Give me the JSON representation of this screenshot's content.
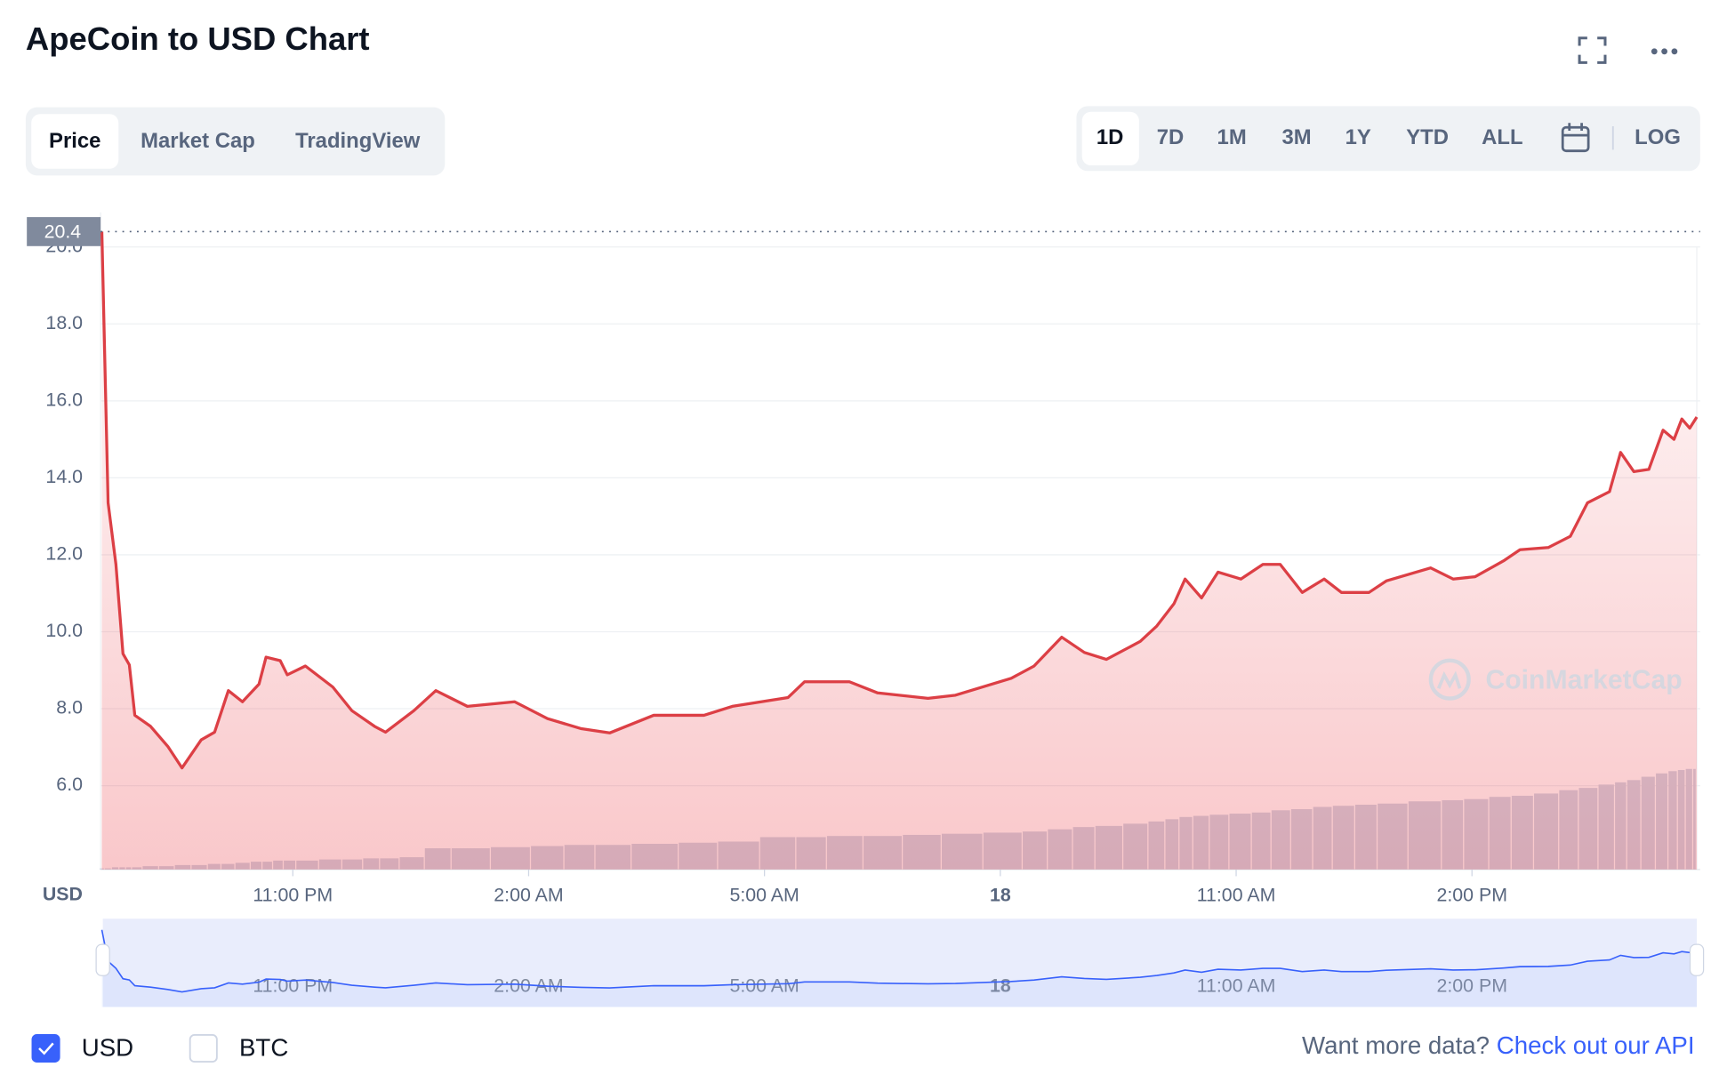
{
  "header": {
    "title": "ApeCoin to USD Chart"
  },
  "tabs": [
    "Price",
    "Market Cap",
    "TradingView"
  ],
  "active_tab": 0,
  "ranges": [
    "1D",
    "7D",
    "1M",
    "3M",
    "1Y",
    "YTD",
    "ALL"
  ],
  "active_range": 0,
  "log_button": "LOG",
  "chart_data": {
    "type": "line",
    "y_axis_label": "USD",
    "watermark": "CoinMarketCap",
    "grid": true,
    "x": [
      20.57,
      20.65,
      20.75,
      20.84,
      20.92,
      20.99,
      21.19,
      21.41,
      21.59,
      21.835,
      22.005,
      22.18,
      22.36,
      22.57,
      22.66,
      22.84,
      22.93,
      23.16,
      23.51,
      23.75,
      24.04,
      24.18,
      24.54,
      24.82,
      25.22,
      25.82,
      26.24,
      26.67,
      27.03,
      27.59,
      28.23,
      28.59,
      29.3,
      29.51,
      30.08,
      30.44,
      31.08,
      31.43,
      32.14,
      32.43,
      32.78,
      33.07,
      33.35,
      33.78,
      33.99,
      34.21,
      34.35,
      34.56,
      34.77,
      35.06,
      35.34,
      35.56,
      35.84,
      36.12,
      36.34,
      36.69,
      36.91,
      37.475,
      37.76,
      38.04,
      38.4,
      38.61,
      38.97,
      39.25,
      39.47,
      39.75,
      39.89,
      40.06,
      40.25,
      40.43,
      40.57,
      40.67,
      40.77,
      40.86
    ],
    "series": [
      {
        "color": "#dc3f45",
        "values": [
          20.4,
          13.35,
          11.75,
          9.43,
          9.14,
          7.83,
          7.54,
          7.02,
          6.46,
          7.19,
          7.39,
          8.47,
          8.18,
          8.64,
          9.34,
          9.25,
          8.88,
          9.11,
          8.56,
          7.95,
          7.54,
          7.39,
          7.95,
          8.47,
          8.06,
          8.18,
          7.74,
          7.48,
          7.37,
          7.83,
          7.83,
          8.06,
          8.29,
          8.7,
          8.7,
          8.41,
          8.27,
          8.35,
          8.79,
          9.11,
          9.86,
          9.46,
          9.28,
          9.75,
          10.15,
          10.73,
          11.37,
          10.88,
          11.55,
          11.37,
          11.75,
          11.75,
          11.02,
          11.37,
          11.02,
          11.02,
          11.32,
          11.66,
          11.37,
          11.43,
          11.84,
          12.13,
          12.19,
          12.48,
          13.35,
          13.64,
          14.66,
          14.16,
          14.22,
          15.24,
          15.0,
          15.53,
          15.29,
          15.58
        ]
      },
      {
        "type": "bar",
        "axis": "y2",
        "color": "#cfd6e4",
        "values": [
          1,
          1,
          2,
          2,
          2,
          2,
          3,
          3,
          4,
          4,
          5,
          5,
          6,
          7,
          7,
          8,
          8,
          8,
          9,
          9,
          10,
          10,
          11,
          19,
          19,
          20,
          21,
          22,
          22,
          23,
          24,
          25,
          29,
          29,
          30,
          30,
          31,
          32,
          33,
          34,
          36,
          38,
          39,
          41,
          43,
          45,
          47,
          48,
          49,
          50,
          51,
          53,
          54,
          56,
          57,
          58,
          59,
          61,
          62,
          63,
          65,
          66,
          68,
          71,
          73,
          76,
          78,
          80,
          83,
          86,
          88,
          89,
          90,
          90
        ]
      }
    ],
    "xlim": [
      20.555,
      40.86
    ],
    "xticks": [
      {
        "value": 23,
        "label": "11:00 PM"
      },
      {
        "value": 26,
        "label": "2:00 AM"
      },
      {
        "value": 29,
        "label": "5:00 AM"
      },
      {
        "value": 32,
        "label": "18"
      },
      {
        "value": 35,
        "label": "11:00 AM"
      },
      {
        "value": 38,
        "label": "2:00 PM"
      }
    ],
    "ylim": [
      3.82,
      20.9
    ],
    "yticks": [
      {
        "value": 6,
        "label": "6.0"
      },
      {
        "value": 8,
        "label": "8.0"
      },
      {
        "value": 10,
        "label": "10.0"
      },
      {
        "value": 12,
        "label": "12.0"
      },
      {
        "value": 14,
        "label": "14.0"
      },
      {
        "value": 16,
        "label": "16.0"
      },
      {
        "value": 18,
        "label": "18.0"
      },
      {
        "value": 20,
        "label": "20.0"
      }
    ],
    "y2lim": [
      0,
      588
    ]
  },
  "currency_options": [
    {
      "label": "USD",
      "checked": true
    },
    {
      "label": "BTC",
      "checked": false
    }
  ],
  "footer": {
    "prompt": "Want more data?",
    "link": "Check out our API"
  }
}
